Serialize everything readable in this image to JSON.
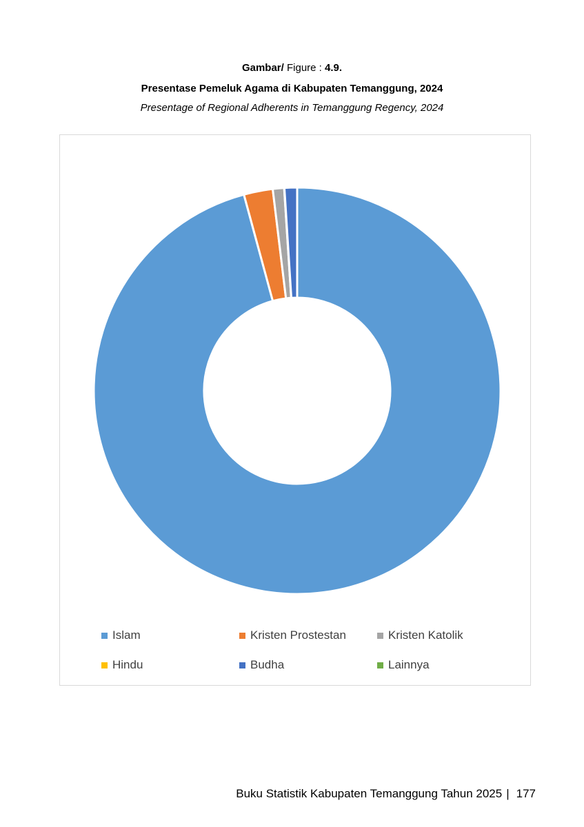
{
  "figure": {
    "label_bold": "Gambar/",
    "label_text": "Figure :",
    "label_number": "4.9.",
    "title": "Presentase Pemeluk Agama di Kabupaten Temanggung, 2024",
    "subtitle": "Presentage of Regional Adherents in Temanggung Regency, 2024"
  },
  "chart_data": {
    "type": "pie",
    "donut": true,
    "categories": [
      "Islam",
      "Kristen Prostestan",
      "Kristen Katolik",
      "Hindu",
      "Budha",
      "Lainnya"
    ],
    "values": [
      95.8,
      2.3,
      0.9,
      0.02,
      1.0,
      0.0
    ],
    "colors": [
      "#5b9bd5",
      "#ed7d31",
      "#a5a5a5",
      "#ffc000",
      "#4472c4",
      "#70ad47"
    ],
    "legend_position": "bottom"
  },
  "footer": {
    "text": "Buku Statistik Kabupaten Temanggung Tahun 2025",
    "separator": "|",
    "page_number": "177"
  }
}
